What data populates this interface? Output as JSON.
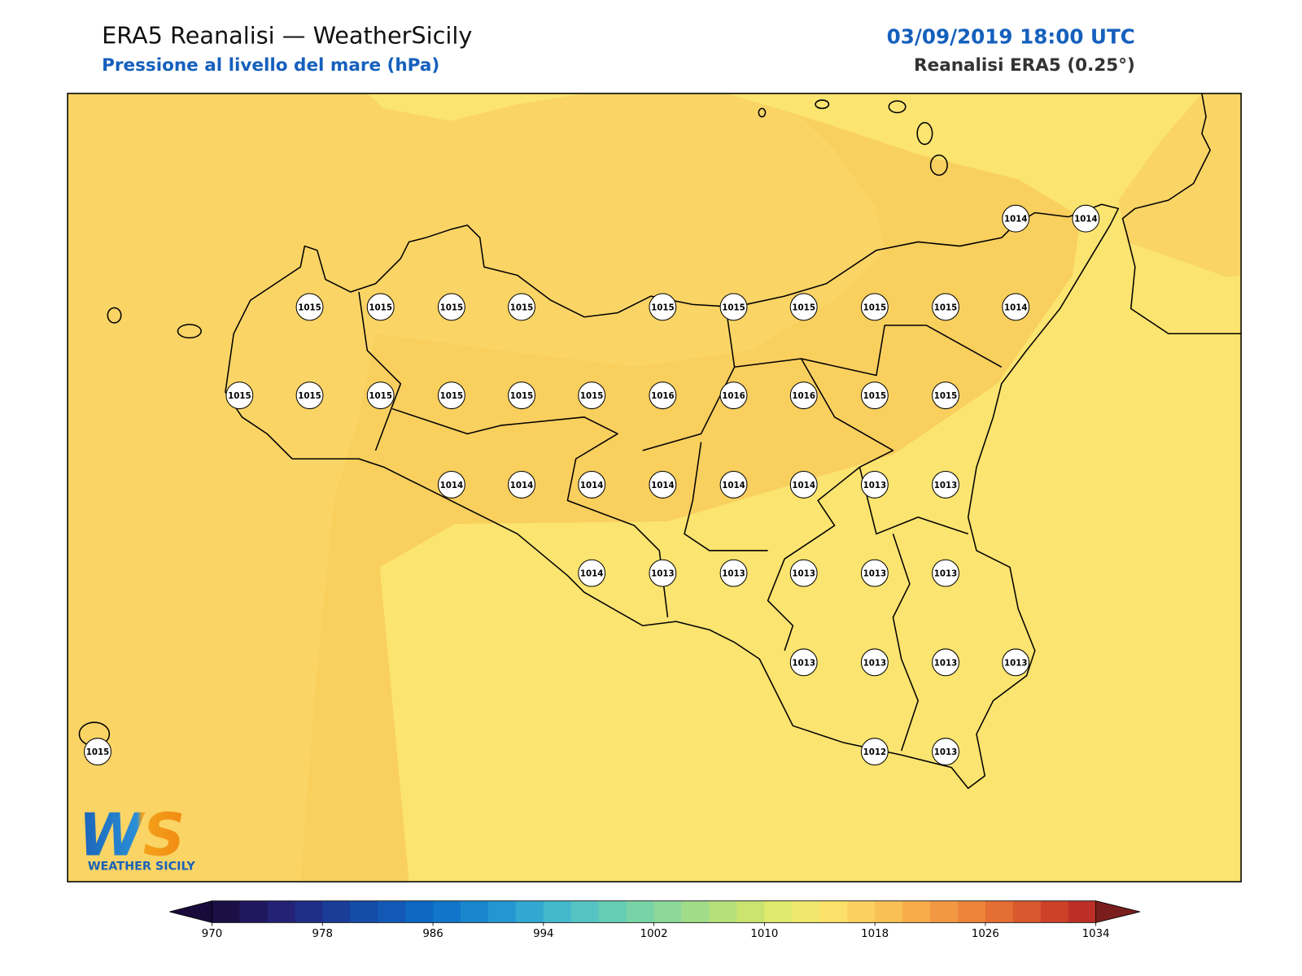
{
  "header": {
    "title": "ERA5 Reanalisi — WeatherSicily",
    "subtitle": "Pressione al livello del mare (hPa)",
    "datetime": "03/09/2019 18:00 UTC",
    "source": "Reanalisi ERA5 (0.25°)"
  },
  "stations": [
    1014,
    1014,
    1015,
    1015,
    1015,
    1015,
    1015,
    1015,
    1015,
    1015,
    1015,
    1014,
    1015,
    1015,
    1015,
    1015,
    1015,
    1015,
    1016,
    1016,
    1016,
    1015,
    1015,
    1014,
    1014,
    1014,
    1014,
    1014,
    1014,
    1013,
    1013,
    1014,
    1013,
    1013,
    1013,
    1013,
    1013,
    1013,
    1013,
    1013,
    1013,
    1015,
    1012,
    1013
  ],
  "colorbar": {
    "range": [
      970,
      1034
    ],
    "ticks": [
      970,
      978,
      986,
      994,
      1002,
      1010,
      1018,
      1026,
      1034
    ],
    "colors": [
      "#1c0f45",
      "#20185e",
      "#232274",
      "#1f2e87",
      "#1a3d98",
      "#154ca8",
      "#1159b5",
      "#0e68c2",
      "#1176c9",
      "#1a86cc",
      "#2597d0",
      "#32a8d1",
      "#44b8cc",
      "#55c4c2",
      "#66cdb5",
      "#78d4a6",
      "#8cd998",
      "#a1dd88",
      "#b6e079",
      "#cbe36f",
      "#dee96e",
      "#f0e86e",
      "#fbe06a",
      "#fbd060",
      "#f9c055",
      "#f6ac4b",
      "#f29842",
      "#ec843a",
      "#e46e33",
      "#d9582d",
      "#cc4229",
      "#bc2f26"
    ]
  },
  "logo": {
    "mark": "WS",
    "name": "WEATHER SICILY"
  }
}
